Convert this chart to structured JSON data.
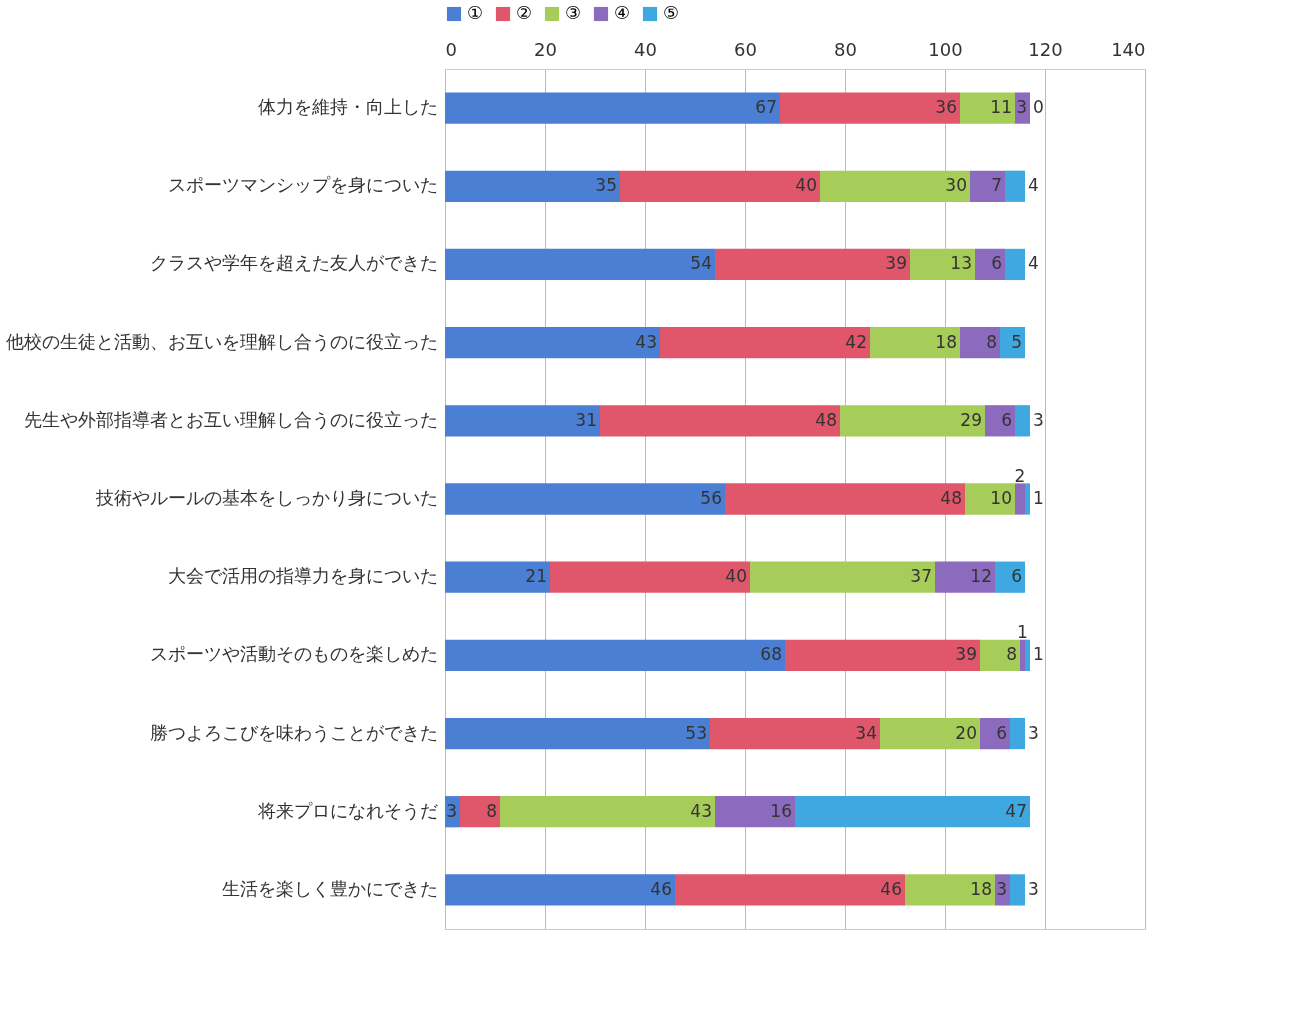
{
  "chart_data": {
    "type": "bar",
    "orientation": "horizontal",
    "stacked": true,
    "data_labels": true,
    "grid": "x",
    "legend": "top",
    "categories": [
      "体力を維持・向上した",
      "スポーツマンシップを身についた",
      "クラスや学年を超えた友人ができた",
      "他校の生徒と活動、お互いを理解し合うのに役立った",
      "先生や外部指導者とお互い理解し合うのに役立った",
      "技術やルールの基本をしっかり身についた",
      "大会で活用の指導力を身についた",
      "スポーツや活動そのものを楽しめた",
      "勝つよろこびを味わうことができた",
      "将来プロになれそうだ",
      "生活を楽しく豊かにできた"
    ],
    "xlim": [
      0,
      140
    ],
    "xticks": [
      0,
      20,
      40,
      60,
      80,
      100,
      120,
      140
    ],
    "series": [
      {
        "name": "①",
        "color": "#4a7fd4",
        "values": [
          67,
          35,
          54,
          43,
          31,
          56,
          21,
          68,
          53,
          3,
          46
        ]
      },
      {
        "name": "②",
        "color": "#e0566a",
        "values": [
          36,
          40,
          39,
          42,
          48,
          48,
          40,
          39,
          34,
          8,
          46
        ]
      },
      {
        "name": "③",
        "color": "#a6cc5a",
        "values": [
          11,
          30,
          13,
          18,
          29,
          10,
          37,
          8,
          20,
          43,
          18
        ]
      },
      {
        "name": "④",
        "color": "#8c6bbf",
        "values": [
          3,
          7,
          6,
          8,
          6,
          2,
          12,
          1,
          6,
          16,
          3
        ]
      },
      {
        "name": "⑤",
        "color": "#40a8e0",
        "values": [
          0,
          4,
          4,
          5,
          3,
          1,
          6,
          1,
          3,
          47,
          3
        ]
      }
    ]
  }
}
